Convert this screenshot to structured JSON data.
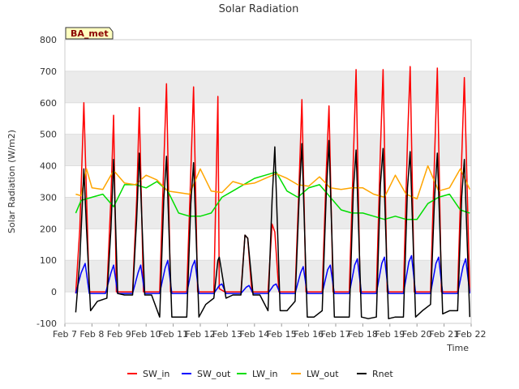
{
  "chart_data": {
    "type": "line",
    "title": "Solar Radiation",
    "xlabel": "Time",
    "ylabel": "Solar Radiation (W/m2)",
    "site_label": "BA_met",
    "ylim": [
      -100,
      800
    ],
    "xlim": [
      7,
      22
    ],
    "yticks": [
      -100,
      0,
      100,
      200,
      300,
      400,
      500,
      600,
      700,
      800
    ],
    "xticks": [
      {
        "v": 7,
        "label": "Feb 7"
      },
      {
        "v": 8,
        "label": "Feb 8"
      },
      {
        "v": 9,
        "label": "Feb 9"
      },
      {
        "v": 10,
        "label": "Feb 10"
      },
      {
        "v": 11,
        "label": "Feb 11"
      },
      {
        "v": 12,
        "label": "Feb 12"
      },
      {
        "v": 13,
        "label": "Feb 13"
      },
      {
        "v": 14,
        "label": "Feb 14"
      },
      {
        "v": 15,
        "label": "Feb 15"
      },
      {
        "v": 16,
        "label": "Feb 16"
      },
      {
        "v": 17,
        "label": "Feb 17"
      },
      {
        "v": 18,
        "label": "Feb 18"
      },
      {
        "v": 19,
        "label": "Feb 19"
      },
      {
        "v": 20,
        "label": "Feb 20"
      },
      {
        "v": 21,
        "label": "Feb 21"
      },
      {
        "v": 22,
        "label": "Feb 22"
      }
    ],
    "grid": "horizontal bands",
    "legend_position": "bottom",
    "series": [
      {
        "name": "SW_in",
        "color": "#ff0000",
        "x": [
          7.4,
          7.55,
          7.7,
          7.8,
          7.9,
          8.55,
          8.7,
          8.8,
          8.9,
          9.5,
          9.65,
          9.75,
          9.9,
          10.5,
          10.65,
          10.75,
          10.9,
          11.5,
          11.65,
          11.75,
          11.9,
          12.5,
          12.65,
          12.7,
          12.9,
          13.5,
          13.65,
          13.75,
          13.9,
          14.5,
          14.65,
          14.75,
          14.9,
          15.5,
          15.65,
          15.75,
          15.9,
          16.5,
          16.65,
          16.75,
          16.9,
          17.5,
          17.65,
          17.75,
          17.9,
          18.5,
          18.65,
          18.75,
          18.9,
          19.5,
          19.65,
          19.75,
          19.9,
          20.5,
          20.65,
          20.75,
          20.9,
          21.5,
          21.65,
          21.75,
          21.95
        ],
        "y": [
          -5,
          200,
          600,
          300,
          0,
          0,
          300,
          560,
          0,
          0,
          290,
          585,
          0,
          0,
          400,
          660,
          0,
          0,
          380,
          650,
          0,
          0,
          620,
          10,
          0,
          0,
          180,
          170,
          0,
          0,
          215,
          190,
          0,
          0,
          350,
          610,
          0,
          0,
          380,
          590,
          0,
          0,
          420,
          705,
          0,
          0,
          450,
          705,
          0,
          0,
          480,
          715,
          0,
          0,
          430,
          710,
          0,
          0,
          420,
          680,
          0
        ]
      },
      {
        "name": "SW_out",
        "color": "#0000ff",
        "x": [
          7.4,
          7.6,
          7.75,
          7.9,
          8.5,
          8.7,
          8.8,
          8.95,
          9.5,
          9.7,
          9.8,
          9.95,
          10.5,
          10.7,
          10.8,
          10.95,
          11.5,
          11.7,
          11.8,
          11.95,
          12.5,
          12.7,
          12.8,
          12.95,
          13.5,
          13.7,
          13.8,
          13.95,
          14.5,
          14.7,
          14.8,
          14.95,
          15.5,
          15.7,
          15.8,
          15.95,
          16.5,
          16.7,
          16.8,
          16.95,
          17.5,
          17.7,
          17.8,
          17.95,
          18.5,
          18.7,
          18.8,
          18.95,
          19.5,
          19.7,
          19.8,
          19.95,
          20.5,
          20.7,
          20.8,
          20.95,
          21.5,
          21.7,
          21.8,
          21.95
        ],
        "y": [
          -5,
          60,
          90,
          -5,
          -5,
          60,
          85,
          -5,
          -5,
          60,
          85,
          -5,
          -5,
          75,
          100,
          -5,
          -5,
          80,
          100,
          -5,
          -5,
          20,
          25,
          -5,
          -5,
          15,
          20,
          -5,
          -5,
          20,
          25,
          -5,
          -5,
          60,
          80,
          -5,
          -5,
          70,
          85,
          -5,
          -5,
          85,
          105,
          -5,
          -5,
          90,
          110,
          -5,
          -5,
          95,
          115,
          -5,
          -5,
          90,
          110,
          -5,
          -5,
          80,
          105,
          -5
        ]
      },
      {
        "name": "LW_in",
        "color": "#00dd00",
        "x": [
          7.4,
          7.6,
          8.0,
          8.4,
          8.8,
          9.2,
          9.6,
          10.0,
          10.4,
          10.8,
          11.2,
          11.6,
          12.0,
          12.4,
          12.8,
          13.2,
          13.6,
          14.0,
          14.4,
          14.8,
          15.2,
          15.6,
          16.0,
          16.4,
          16.8,
          17.2,
          17.6,
          18.0,
          18.4,
          18.8,
          19.2,
          19.6,
          20.0,
          20.4,
          20.8,
          21.2,
          21.6,
          21.95
        ],
        "y": [
          250,
          290,
          300,
          310,
          270,
          340,
          340,
          330,
          350,
          320,
          250,
          240,
          240,
          250,
          300,
          320,
          340,
          360,
          370,
          380,
          320,
          300,
          330,
          340,
          300,
          260,
          250,
          250,
          240,
          230,
          240,
          230,
          230,
          280,
          300,
          310,
          260,
          250
        ]
      },
      {
        "name": "LW_out",
        "color": "#ffa500",
        "x": [
          7.4,
          7.6,
          7.8,
          8.0,
          8.4,
          8.8,
          9.2,
          9.6,
          10.0,
          10.4,
          10.8,
          11.2,
          11.6,
          12.0,
          12.4,
          12.8,
          13.2,
          13.6,
          14.0,
          14.4,
          14.8,
          15.2,
          15.6,
          16.0,
          16.4,
          16.8,
          17.2,
          17.6,
          18.0,
          18.4,
          18.8,
          19.2,
          19.6,
          20.0,
          20.4,
          20.8,
          21.2,
          21.6,
          21.95
        ],
        "y": [
          310,
          305,
          390,
          330,
          325,
          385,
          345,
          340,
          370,
          355,
          320,
          315,
          310,
          390,
          320,
          315,
          350,
          340,
          345,
          360,
          375,
          360,
          340,
          335,
          365,
          330,
          325,
          330,
          330,
          310,
          300,
          370,
          310,
          295,
          400,
          320,
          330,
          390,
          325
        ]
      },
      {
        "name": "Rnet",
        "color": "#000000",
        "x": [
          7.4,
          7.55,
          7.7,
          7.8,
          7.95,
          8.2,
          8.55,
          8.7,
          8.8,
          8.95,
          9.2,
          9.5,
          9.65,
          9.75,
          9.95,
          10.2,
          10.5,
          10.65,
          10.75,
          10.95,
          11.2,
          11.5,
          11.65,
          11.75,
          11.95,
          12.2,
          12.5,
          12.65,
          12.7,
          12.95,
          13.2,
          13.5,
          13.65,
          13.75,
          13.95,
          14.2,
          14.5,
          14.65,
          14.75,
          14.95,
          15.2,
          15.5,
          15.65,
          15.75,
          15.95,
          16.2,
          16.5,
          16.65,
          16.75,
          16.95,
          17.2,
          17.5,
          17.65,
          17.75,
          17.95,
          18.2,
          18.5,
          18.65,
          18.75,
          18.95,
          19.2,
          19.5,
          19.65,
          19.75,
          19.95,
          20.2,
          20.5,
          20.65,
          20.75,
          20.95,
          21.2,
          21.5,
          21.65,
          21.75,
          21.95
        ],
        "y": [
          -65,
          100,
          390,
          200,
          -60,
          -30,
          -20,
          200,
          420,
          -5,
          -10,
          -10,
          230,
          440,
          -10,
          -10,
          -80,
          290,
          430,
          -80,
          -80,
          -80,
          280,
          410,
          -80,
          -40,
          -20,
          100,
          110,
          -20,
          -10,
          -10,
          180,
          170,
          -10,
          -10,
          -60,
          290,
          460,
          -60,
          -60,
          -30,
          300,
          470,
          -80,
          -80,
          -60,
          310,
          480,
          -80,
          -80,
          -80,
          320,
          450,
          -80,
          -85,
          -80,
          340,
          455,
          -85,
          -80,
          -80,
          330,
          445,
          -80,
          -60,
          -40,
          300,
          440,
          -70,
          -60,
          -60,
          300,
          420,
          -80
        ]
      }
    ]
  }
}
